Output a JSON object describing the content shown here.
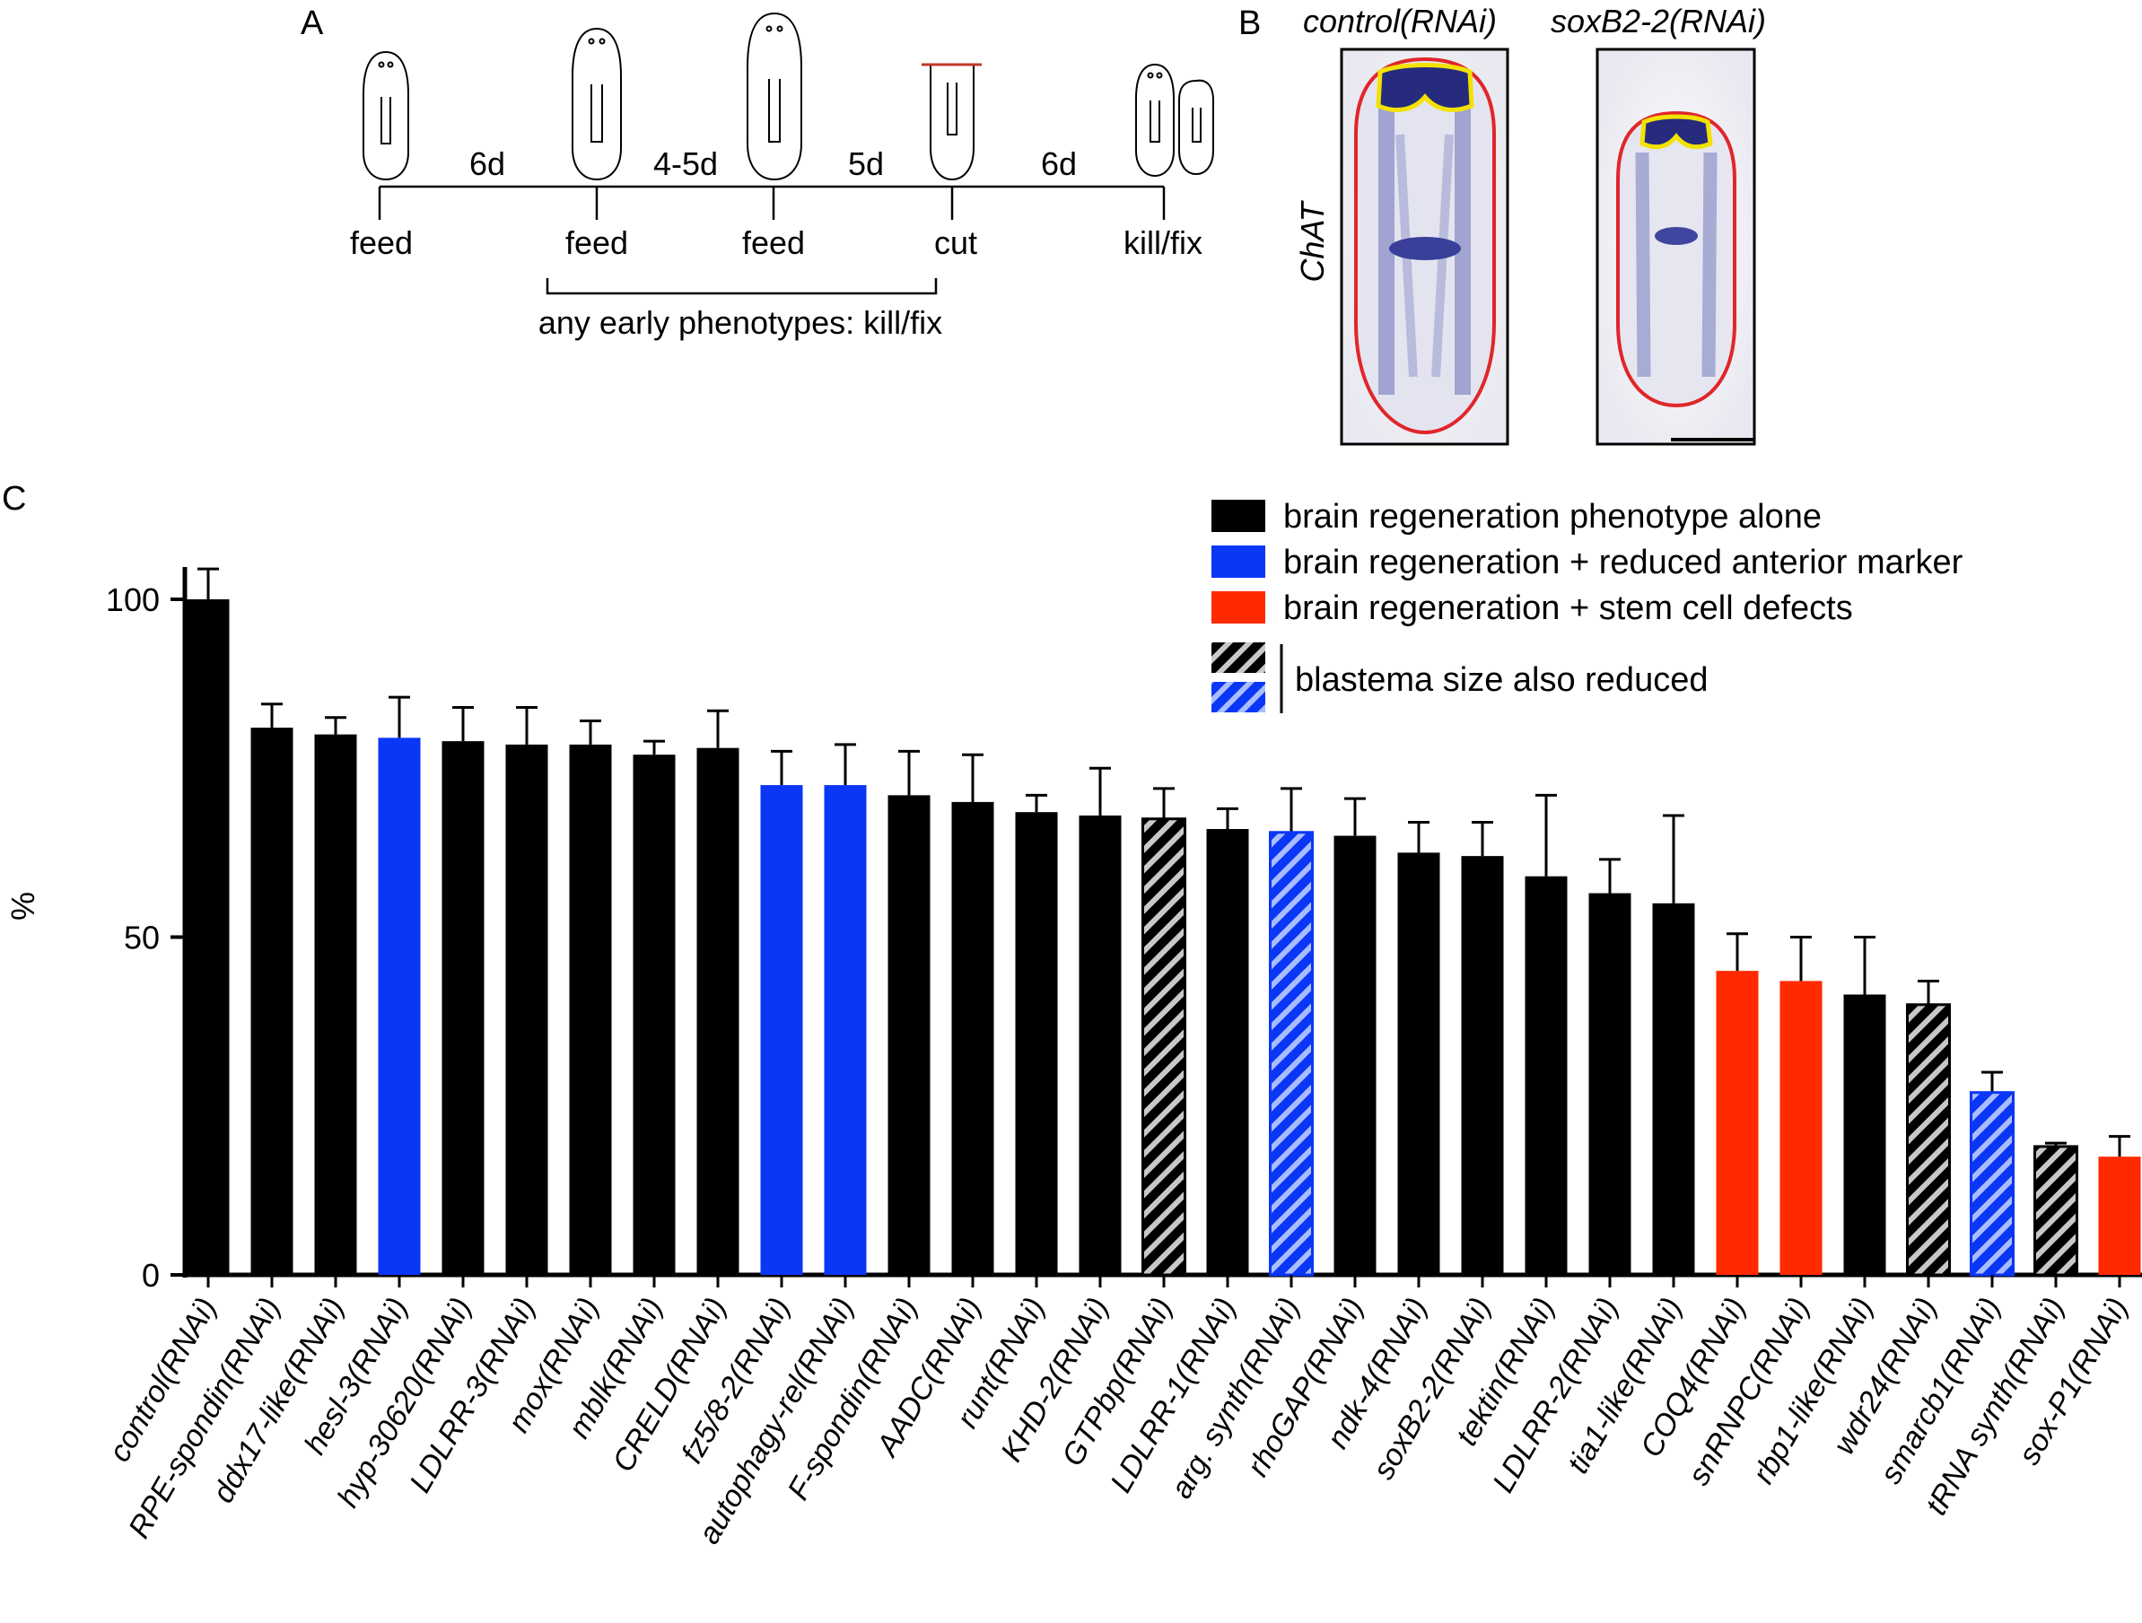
{
  "panel_a": {
    "letter": "A",
    "intervals": [
      "6d",
      "4-5d",
      "5d",
      "6d"
    ],
    "events": [
      "feed",
      "feed",
      "feed",
      "cut",
      "kill/fix"
    ],
    "bracket_label": "any early phenotypes: kill/fix",
    "cut_line_color": "#c0392b"
  },
  "panel_b": {
    "letter": "B",
    "titles": [
      "control(RNAi)",
      "soxB2-2(RNAi)"
    ],
    "marker_label": "ChAT",
    "outline_color": "#e0262a",
    "brain_outline_color": "#f2e200",
    "stain_color": "#2a2f8a"
  },
  "panel_c": {
    "letter": "C"
  },
  "chart_data": {
    "type": "bar",
    "ylabel": "%",
    "ylim": [
      0,
      100
    ],
    "yticks": [
      0,
      50,
      100
    ],
    "categories": [
      "control(RNAi)",
      "RPE-spondin(RNAi)",
      "ddx17-like(RNAi)",
      "hesl-3(RNAi)",
      "hyp-30620(RNAi)",
      "LDLRR-3(RNAi)",
      "mox(RNAi)",
      "mblk(RNAi)",
      "CRELD(RNAi)",
      "fz5/8-2(RNAi)",
      "autophagy-rel(RNAi)",
      "F-spondin(RNAi)",
      "AADC(RNAi)",
      "runt(RNAi)",
      "KHD-2(RNAi)",
      "GTPbp(RNAi)",
      "LDLRR-1(RNAi)",
      "arg. synth(RNAi)",
      "rhoGAP(RNAi)",
      "ndk-4(RNAi)",
      "soxB2-2(RNAi)",
      "tektin(RNAi)",
      "LDLRR-2(RNAi)",
      "tia1-like(RNAi)",
      "COQ4(RNAi)",
      "snRNPC(RNAi)",
      "rbp1-like(RNAi)",
      "wdr24(RNAi)",
      "smarcb1(RNAi)",
      "tRNA synth(RNAi)",
      "sox-P1(RNAi)"
    ],
    "values": [
      100,
      81,
      80,
      79.5,
      79,
      78.5,
      78.5,
      77,
      78,
      72.5,
      72.5,
      71,
      70,
      68.5,
      68,
      67.5,
      66,
      65.5,
      65,
      62.5,
      62,
      59,
      56.5,
      55,
      45,
      43.5,
      41.5,
      40,
      27,
      19,
      17.5
    ],
    "errors": [
      4.5,
      3.5,
      2.5,
      6,
      5,
      5.5,
      3.5,
      2,
      5.5,
      5,
      6,
      6.5,
      7,
      2.5,
      7,
      4.5,
      3,
      6.5,
      5.5,
      4.5,
      5,
      12,
      5,
      13,
      5.5,
      6.5,
      8.5,
      3.5,
      3,
      0.5,
      3
    ],
    "classes": [
      "black",
      "black",
      "black",
      "blue",
      "black",
      "black",
      "black",
      "black",
      "black",
      "blue",
      "blue",
      "black",
      "black",
      "black",
      "black",
      "black-hatched",
      "black",
      "blue-hatched",
      "black",
      "black",
      "black",
      "black",
      "black",
      "black",
      "red",
      "red",
      "black",
      "black-hatched",
      "blue-hatched",
      "black-hatched",
      "red"
    ],
    "legend": [
      {
        "class": "black",
        "label": "brain regeneration phenotype alone"
      },
      {
        "class": "blue",
        "label": "brain regeneration + reduced anterior marker"
      },
      {
        "class": "red",
        "label": "brain regeneration + stem cell defects"
      }
    ],
    "legend_hatched_label": "blastema size also reduced",
    "colors": {
      "black": "#000000",
      "blue": "#0a36f5",
      "red": "#ff2a00"
    }
  }
}
